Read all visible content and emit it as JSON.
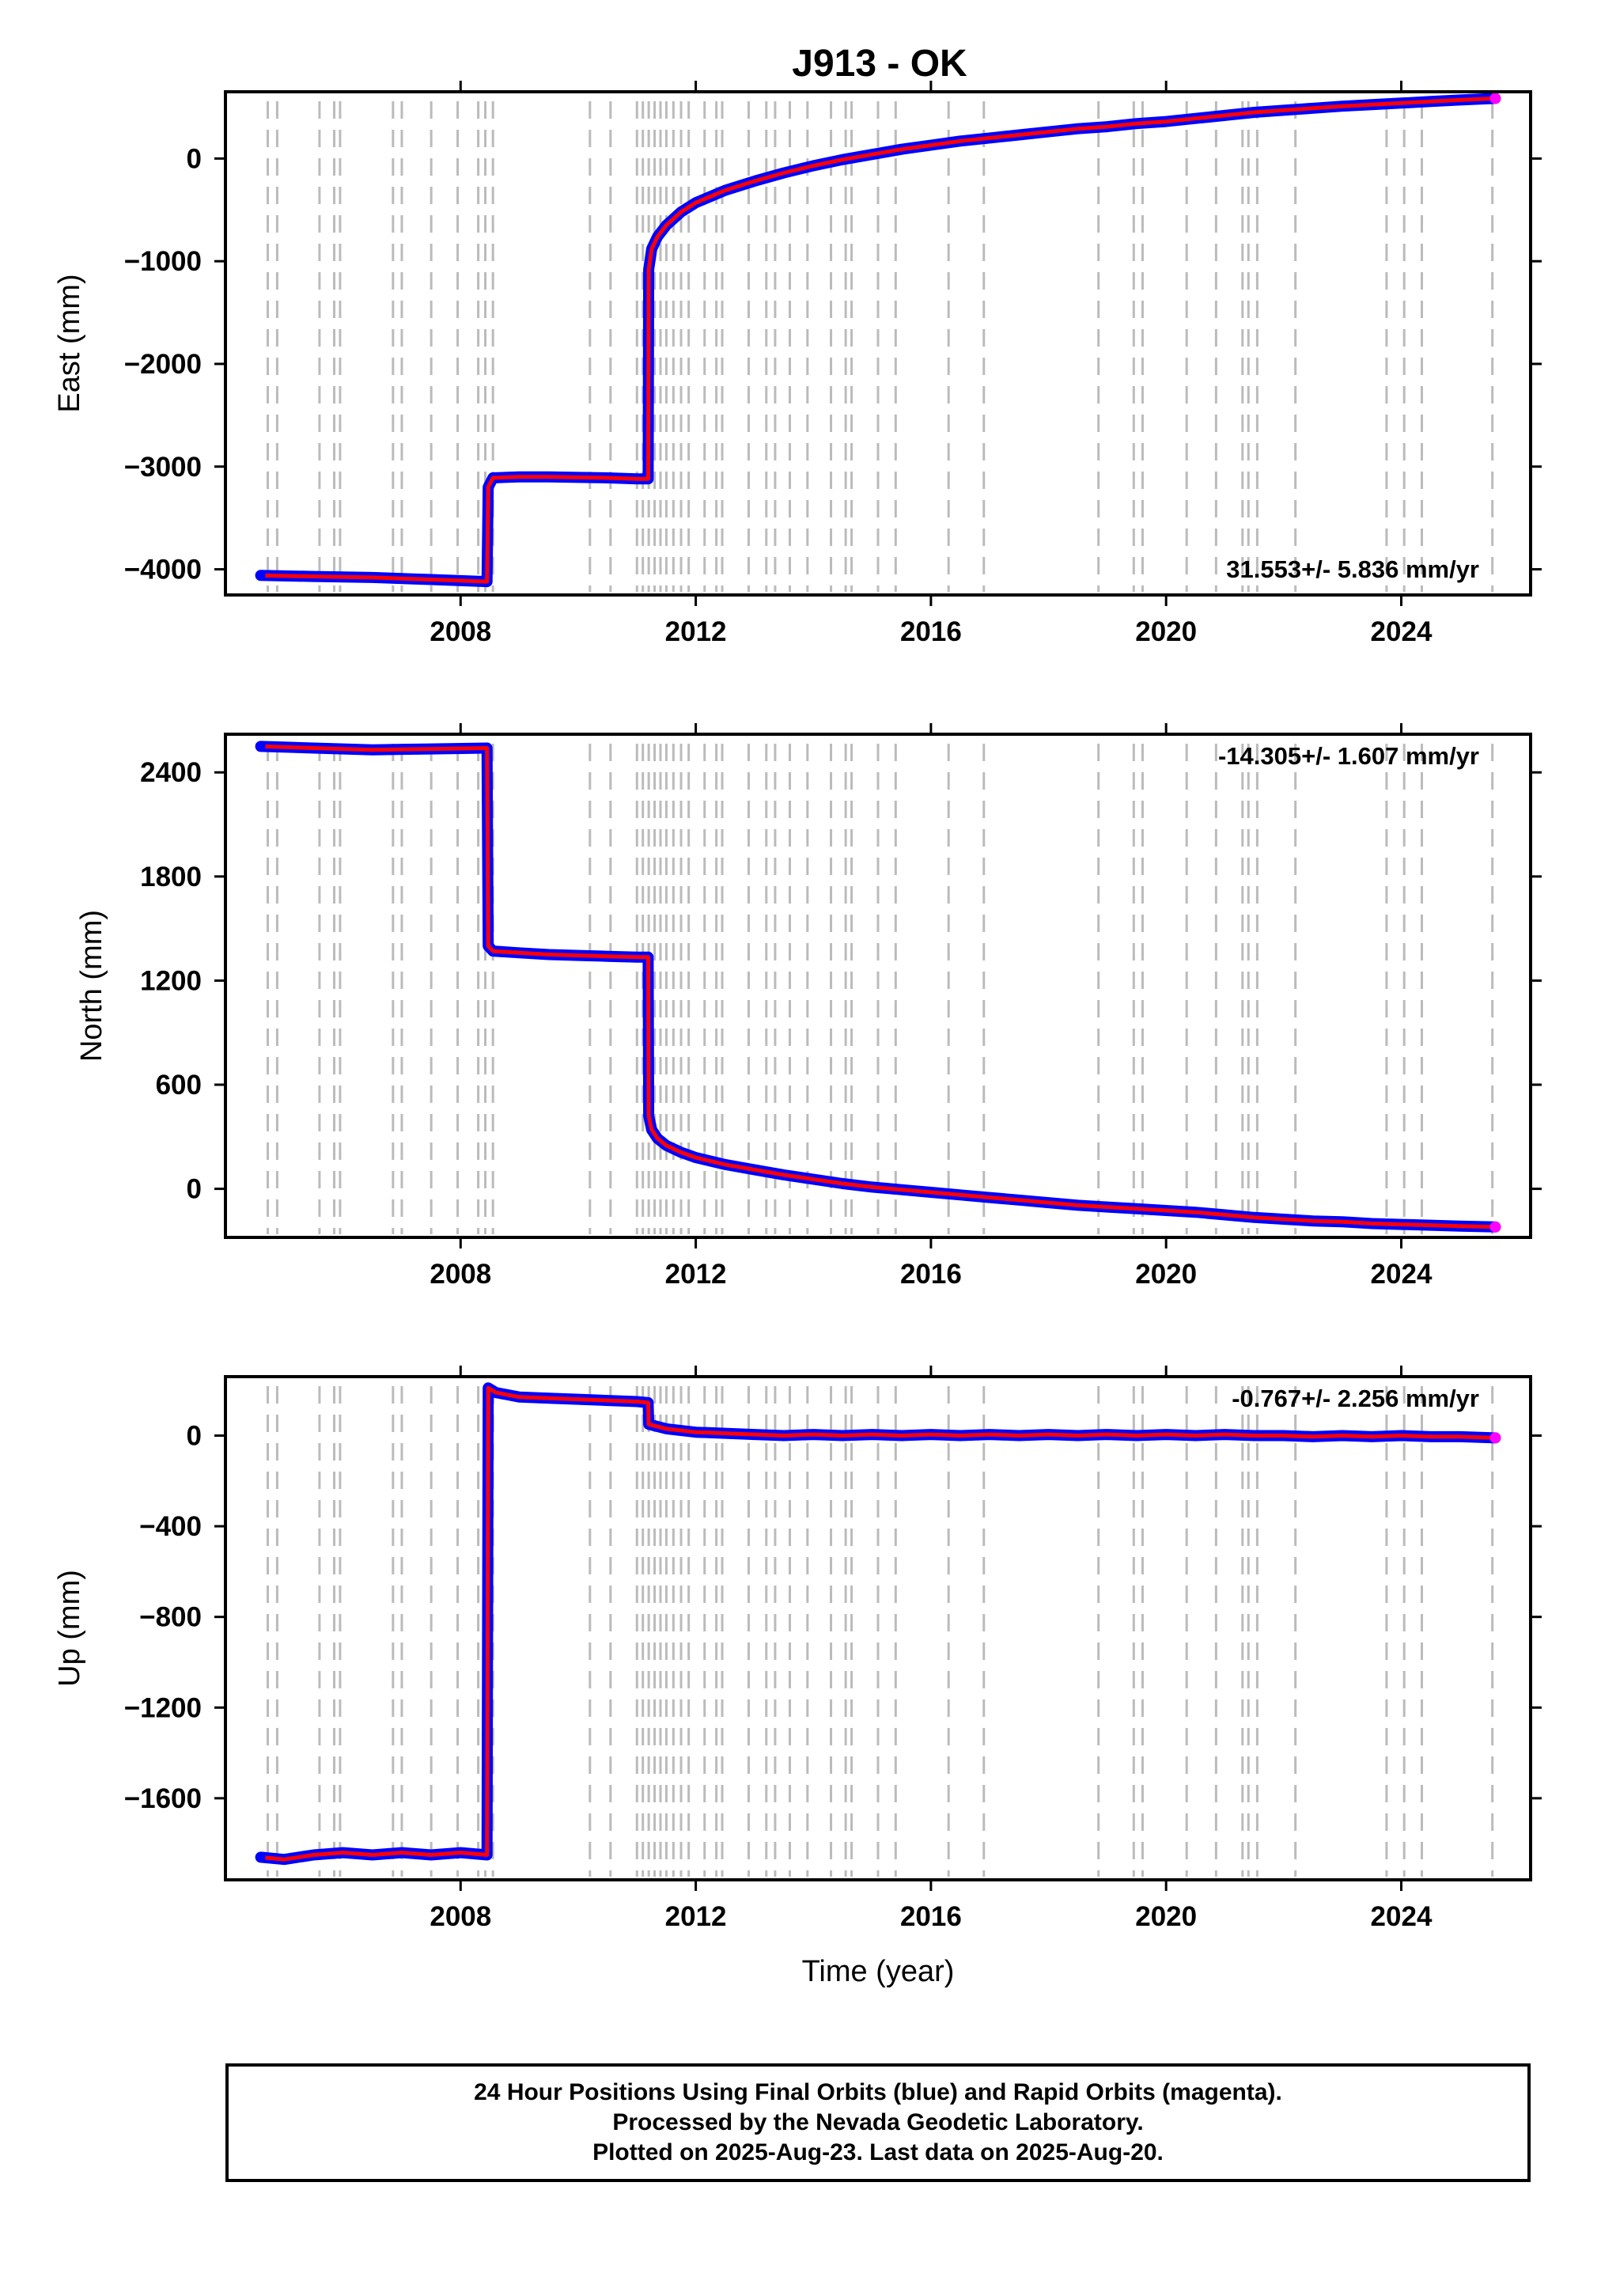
{
  "title": "J913 - OK",
  "footer": {
    "line1": "24 Hour Positions Using Final Orbits (blue) and Rapid Orbits (magenta).",
    "line2": "Processed by the Nevada Geodetic Laboratory.",
    "line3": "Plotted on 2025-Aug-23. Last data on 2025-Aug-20."
  },
  "colors": {
    "final_orbits": "#0000ff",
    "rapid_orbits": "#ff00ff",
    "model": "#ff0000",
    "event_lines": "#bbbbbb"
  },
  "chart_data": [
    {
      "type": "line",
      "ylabel": "East (mm)",
      "xlabel": "",
      "xlim": [
        2004.0,
        2026.2
      ],
      "ylim": [
        -4250,
        650
      ],
      "xticks": [
        "2008",
        "2012",
        "2016",
        "2020",
        "2024"
      ],
      "yticks": [
        "0",
        "-1000",
        "-2000",
        "-3000",
        "-4000"
      ],
      "rate": "31.553+/- 5.836 mm/yr",
      "rate_position": "bottom-right",
      "series": [
        {
          "x": [
            2004.6,
            2005.5,
            2006.5,
            2007.5,
            2008.45,
            2008.47,
            2008.55,
            2009.0,
            2009.5,
            2010.0,
            2010.5,
            2011.0,
            2011.19,
            2011.2,
            2011.25,
            2011.35,
            2011.5,
            2011.75,
            2012.0,
            2012.5,
            2013.0,
            2013.5,
            2014.0,
            2014.5,
            2015.0,
            2015.5,
            2016.0,
            2016.5,
            2017.0,
            2017.5,
            2018.0,
            2018.5,
            2019.0,
            2019.5,
            2020.0,
            2020.5,
            2021.0,
            2021.5,
            2022.0,
            2022.5,
            2023.0,
            2023.5,
            2024.0,
            2024.5,
            2025.0,
            2025.6
          ],
          "y": [
            -4060,
            -4070,
            -4080,
            -4100,
            -4120,
            -3200,
            -3110,
            -3100,
            -3100,
            -3105,
            -3110,
            -3120,
            -3120,
            -1080,
            -880,
            -760,
            -650,
            -520,
            -430,
            -310,
            -220,
            -140,
            -70,
            -10,
            40,
            90,
            130,
            170,
            200,
            230,
            260,
            290,
            310,
            340,
            360,
            390,
            420,
            450,
            470,
            490,
            510,
            525,
            540,
            555,
            570,
            585
          ]
        }
      ]
    },
    {
      "type": "line",
      "ylabel": "North (mm)",
      "xlabel": "",
      "xlim": [
        2004.0,
        2026.2
      ],
      "ylim": [
        -280,
        2620
      ],
      "xticks": [
        "2008",
        "2012",
        "2016",
        "2020",
        "2024"
      ],
      "yticks": [
        "2400",
        "1800",
        "1200",
        "600",
        "0"
      ],
      "rate": "-14.305+/- 1.607 mm/yr",
      "rate_position": "top-right",
      "series": [
        {
          "x": [
            2004.6,
            2005.5,
            2006.5,
            2007.5,
            2008.45,
            2008.47,
            2008.55,
            2009.0,
            2009.5,
            2010.0,
            2010.5,
            2011.0,
            2011.19,
            2011.2,
            2011.25,
            2011.35,
            2011.5,
            2011.75,
            2012.0,
            2012.5,
            2013.0,
            2013.5,
            2014.0,
            2014.5,
            2015.0,
            2015.5,
            2016.0,
            2016.5,
            2017.0,
            2017.5,
            2018.0,
            2018.5,
            2019.0,
            2019.5,
            2020.0,
            2020.5,
            2021.0,
            2021.5,
            2022.0,
            2022.5,
            2023.0,
            2023.5,
            2024.0,
            2024.5,
            2025.0,
            2025.6
          ],
          "y": [
            2550,
            2540,
            2530,
            2535,
            2540,
            1400,
            1370,
            1360,
            1350,
            1345,
            1340,
            1335,
            1335,
            420,
            340,
            290,
            250,
            210,
            180,
            140,
            110,
            80,
            55,
            30,
            10,
            -5,
            -20,
            -35,
            -50,
            -65,
            -80,
            -95,
            -105,
            -115,
            -125,
            -135,
            -150,
            -165,
            -175,
            -185,
            -190,
            -200,
            -205,
            -210,
            -215,
            -220
          ]
        }
      ]
    },
    {
      "type": "line",
      "ylabel": "Up (mm)",
      "xlabel": "Time (year)",
      "xlim": [
        2004.0,
        2026.2
      ],
      "ylim": [
        -1960,
        260
      ],
      "xticks": [
        "2008",
        "2012",
        "2016",
        "2020",
        "2024"
      ],
      "yticks": [
        "0",
        "-400",
        "-800",
        "-1200",
        "-1600"
      ],
      "rate": "-0.767+/- 2.256 mm/yr",
      "rate_position": "top-right",
      "series": [
        {
          "x": [
            2004.6,
            2005.0,
            2005.5,
            2006.0,
            2006.5,
            2007.0,
            2007.5,
            2008.0,
            2008.45,
            2008.47,
            2008.6,
            2009.0,
            2009.5,
            2010.0,
            2010.5,
            2011.0,
            2011.19,
            2011.2,
            2011.5,
            2012.0,
            2012.5,
            2013.0,
            2013.5,
            2014.0,
            2014.5,
            2015.0,
            2015.5,
            2016.0,
            2016.5,
            2017.0,
            2017.5,
            2018.0,
            2018.5,
            2019.0,
            2019.5,
            2020.0,
            2020.5,
            2021.0,
            2021.5,
            2022.0,
            2022.5,
            2023.0,
            2023.5,
            2024.0,
            2024.5,
            2025.0,
            2025.6
          ],
          "y": [
            -1860,
            -1870,
            -1850,
            -1840,
            -1850,
            -1840,
            -1850,
            -1840,
            -1850,
            210,
            190,
            170,
            165,
            160,
            155,
            150,
            145,
            50,
            30,
            15,
            10,
            5,
            0,
            5,
            0,
            5,
            0,
            5,
            0,
            5,
            0,
            5,
            0,
            5,
            0,
            5,
            0,
            5,
            0,
            0,
            -5,
            0,
            -5,
            0,
            -5,
            -5,
            -10
          ]
        }
      ]
    }
  ],
  "event_lines": [
    2004.72,
    2004.88,
    2005.6,
    2005.85,
    2005.95,
    2006.85,
    2007.0,
    2007.5,
    2007.95,
    2008.3,
    2008.42,
    2008.55,
    2010.2,
    2010.55,
    2011.0,
    2011.1,
    2011.2,
    2011.3,
    2011.4,
    2011.5,
    2011.62,
    2011.75,
    2011.88,
    2012.15,
    2012.35,
    2012.45,
    2012.9,
    2013.2,
    2013.35,
    2013.6,
    2013.9,
    2014.3,
    2014.55,
    2014.65,
    2015.1,
    2015.4,
    2016.3,
    2016.9,
    2018.85,
    2019.45,
    2019.6,
    2020.35,
    2020.85,
    2021.3,
    2021.4,
    2021.55,
    2022.2,
    2023.75,
    2024.05,
    2024.35,
    2025.55
  ]
}
